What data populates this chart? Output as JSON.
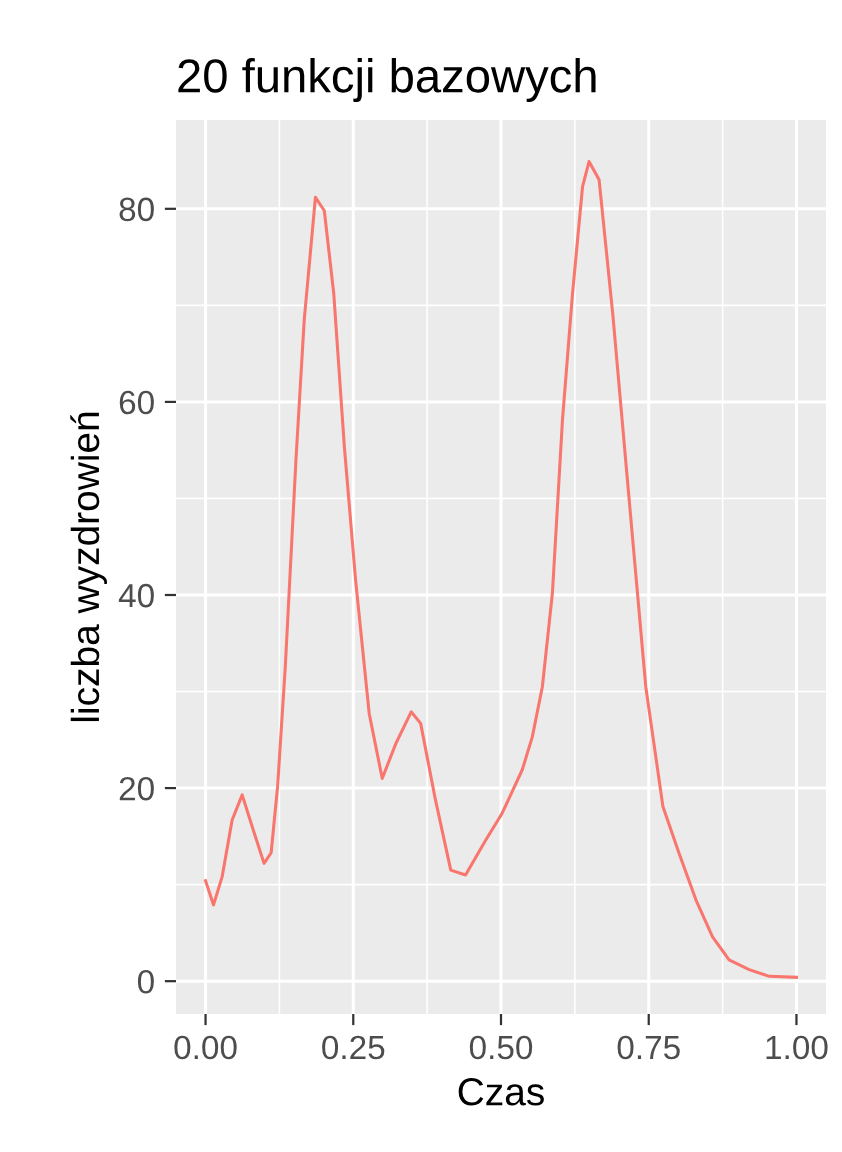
{
  "chart_data": {
    "type": "line",
    "title": "20 funkcji bazowych",
    "xlabel": "Czas",
    "ylabel": "liczba wyzdrowień",
    "series": [
      {
        "color": "#f8766d",
        "x": [
          0,
          0.0135,
          0.028,
          0.045,
          0.062,
          0.079,
          0.099,
          0.111,
          0.122,
          0.135,
          0.153,
          0.167,
          0.186,
          0.201,
          0.217,
          0.235,
          0.254,
          0.277,
          0.299,
          0.322,
          0.348,
          0.364,
          0.389,
          0.415,
          0.44,
          0.474,
          0.502,
          0.536,
          0.553,
          0.57,
          0.587,
          0.604,
          0.621,
          0.638,
          0.649,
          0.666,
          0.689,
          0.717,
          0.745,
          0.774,
          0.801,
          0.83,
          0.858,
          0.886,
          0.92,
          0.954,
          1.0
        ],
        "values": [
          10.4,
          7.9,
          10.8,
          16.7,
          19.3,
          16.0,
          12.2,
          13.3,
          20.2,
          32.6,
          54.0,
          68.5,
          81.2,
          79.8,
          71.2,
          55.3,
          41.5,
          27.7,
          21.0,
          24.6,
          27.9,
          26.7,
          18.8,
          11.5,
          11.0,
          14.6,
          17.4,
          21.9,
          25.3,
          30.5,
          40.2,
          58.1,
          71.2,
          82.3,
          84.9,
          83.0,
          69.2,
          49.8,
          30.5,
          18.1,
          13.3,
          8.4,
          4.6,
          2.2,
          1.2,
          0.5,
          0.4
        ]
      }
    ],
    "xlim": [
      -0.05,
      1.05
    ],
    "ylim": [
      -3.4,
      89.2
    ],
    "xticks": [
      {
        "value": 0,
        "label": "0.00"
      },
      {
        "value": 0.25,
        "label": "0.25"
      },
      {
        "value": 0.5,
        "label": "0.50"
      },
      {
        "value": 0.75,
        "label": "0.75"
      },
      {
        "value": 1,
        "label": "1.00"
      }
    ],
    "yticks": [
      0,
      20,
      40,
      60,
      80
    ],
    "grid": true,
    "legend": false,
    "line_style": "solid",
    "marker": "none"
  }
}
